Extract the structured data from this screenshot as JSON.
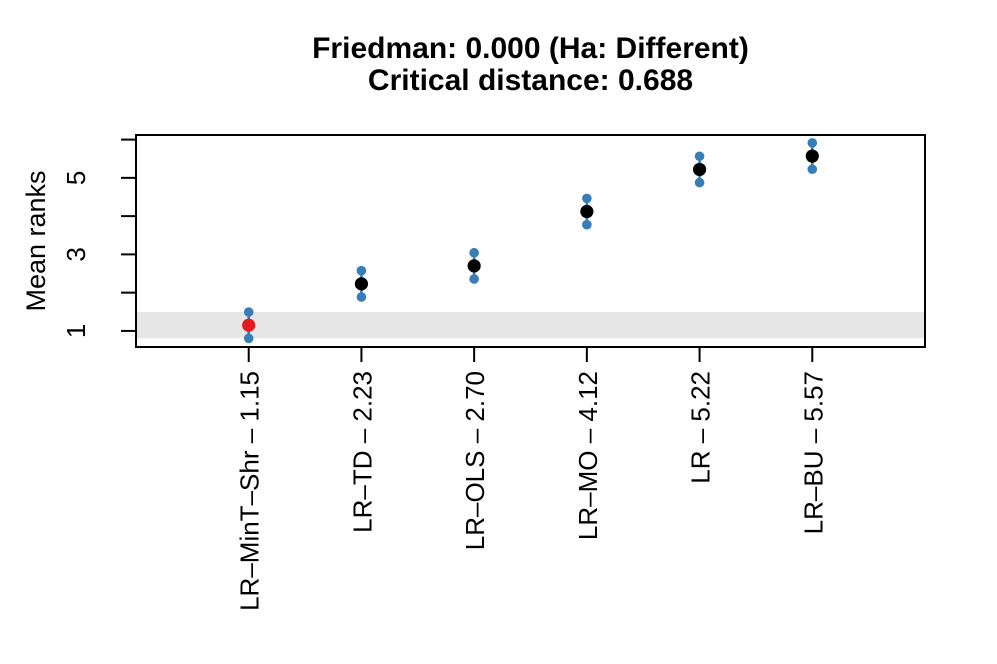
{
  "chart_data": {
    "type": "scatter",
    "variant": "nemenyi-mcb-mean-ranks",
    "title_line1": "Friedman: 0.000 (Ha: Different)",
    "title_line2": "Critical distance: 0.688",
    "friedman_pvalue": "0.000",
    "alternative_hypothesis": "Ha: Different",
    "critical_distance": 0.688,
    "ylabel": "Mean ranks",
    "xlabel": "",
    "categories": [
      "LR–MinT–Shr",
      "LR–TD",
      "LR–OLS",
      "LR–MO",
      "LR",
      "LR–BU"
    ],
    "x_tick_labels": [
      "LR–MinT–Shr – 1.15",
      "LR–TD – 2.23",
      "LR–OLS – 2.70",
      "LR–MO – 4.12",
      "LR – 5.22",
      "LR–BU – 5.57"
    ],
    "means": [
      1.15,
      2.23,
      2.7,
      4.12,
      5.22,
      5.57
    ],
    "interval_half_width": 0.344,
    "best_index": 0,
    "yticks": [
      1,
      2,
      3,
      4,
      5,
      6
    ],
    "ytick_labels": [
      "1",
      "",
      "3",
      "",
      "5",
      ""
    ],
    "ylim": [
      0.58,
      6.12
    ],
    "band": {
      "from": 0.806,
      "to": 1.494
    },
    "grid": false,
    "legend": false,
    "colors": {
      "interval": "#377EB8",
      "mean": "#000000",
      "best_mean": "#E41A1C",
      "band": "#E6E6E6",
      "axis": "#000000",
      "background": "#FFFFFF",
      "title": "#000000"
    }
  }
}
